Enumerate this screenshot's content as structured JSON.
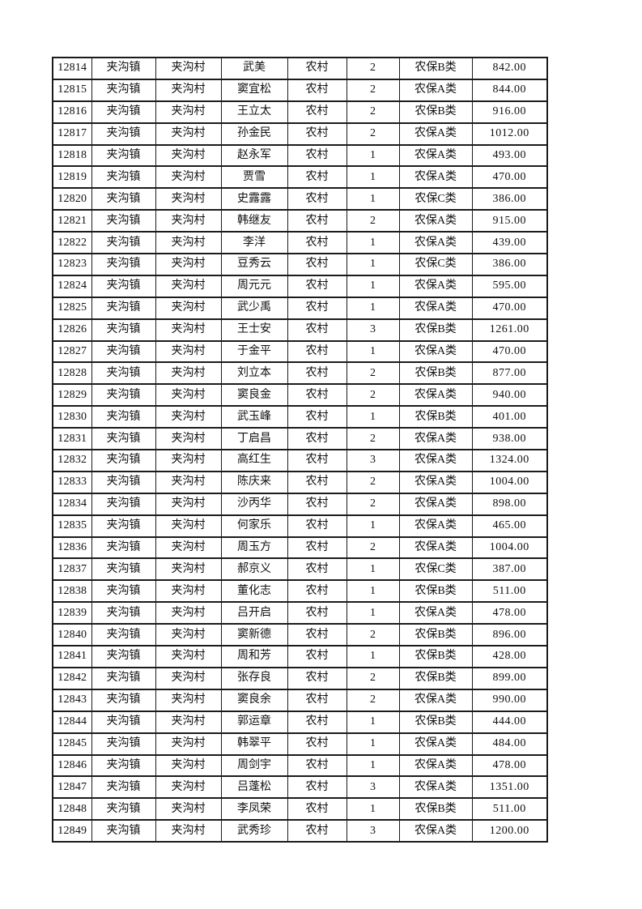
{
  "table": {
    "column_keys": [
      "id",
      "town",
      "village",
      "name",
      "residence",
      "count",
      "category",
      "amount"
    ],
    "rows": [
      {
        "id": "12814",
        "town": "夹沟镇",
        "village": "夹沟村",
        "name": "武美",
        "residence": "农村",
        "count": "2",
        "category": "农保B类",
        "amount": "842.00"
      },
      {
        "id": "12815",
        "town": "夹沟镇",
        "village": "夹沟村",
        "name": "窦宜松",
        "residence": "农村",
        "count": "2",
        "category": "农保A类",
        "amount": "844.00"
      },
      {
        "id": "12816",
        "town": "夹沟镇",
        "village": "夹沟村",
        "name": "王立太",
        "residence": "农村",
        "count": "2",
        "category": "农保B类",
        "amount": "916.00"
      },
      {
        "id": "12817",
        "town": "夹沟镇",
        "village": "夹沟村",
        "name": "孙金民",
        "residence": "农村",
        "count": "2",
        "category": "农保A类",
        "amount": "1012.00"
      },
      {
        "id": "12818",
        "town": "夹沟镇",
        "village": "夹沟村",
        "name": "赵永军",
        "residence": "农村",
        "count": "1",
        "category": "农保A类",
        "amount": "493.00"
      },
      {
        "id": "12819",
        "town": "夹沟镇",
        "village": "夹沟村",
        "name": "贾雪",
        "residence": "农村",
        "count": "1",
        "category": "农保A类",
        "amount": "470.00"
      },
      {
        "id": "12820",
        "town": "夹沟镇",
        "village": "夹沟村",
        "name": "史露露",
        "residence": "农村",
        "count": "1",
        "category": "农保C类",
        "amount": "386.00"
      },
      {
        "id": "12821",
        "town": "夹沟镇",
        "village": "夹沟村",
        "name": "韩继友",
        "residence": "农村",
        "count": "2",
        "category": "农保A类",
        "amount": "915.00"
      },
      {
        "id": "12822",
        "town": "夹沟镇",
        "village": "夹沟村",
        "name": "李洋",
        "residence": "农村",
        "count": "1",
        "category": "农保A类",
        "amount": "439.00"
      },
      {
        "id": "12823",
        "town": "夹沟镇",
        "village": "夹沟村",
        "name": "豆秀云",
        "residence": "农村",
        "count": "1",
        "category": "农保C类",
        "amount": "386.00"
      },
      {
        "id": "12824",
        "town": "夹沟镇",
        "village": "夹沟村",
        "name": "周元元",
        "residence": "农村",
        "count": "1",
        "category": "农保A类",
        "amount": "595.00"
      },
      {
        "id": "12825",
        "town": "夹沟镇",
        "village": "夹沟村",
        "name": "武少禹",
        "residence": "农村",
        "count": "1",
        "category": "农保A类",
        "amount": "470.00"
      },
      {
        "id": "12826",
        "town": "夹沟镇",
        "village": "夹沟村",
        "name": "王士安",
        "residence": "农村",
        "count": "3",
        "category": "农保B类",
        "amount": "1261.00"
      },
      {
        "id": "12827",
        "town": "夹沟镇",
        "village": "夹沟村",
        "name": "于金平",
        "residence": "农村",
        "count": "1",
        "category": "农保A类",
        "amount": "470.00"
      },
      {
        "id": "12828",
        "town": "夹沟镇",
        "village": "夹沟村",
        "name": "刘立本",
        "residence": "农村",
        "count": "2",
        "category": "农保B类",
        "amount": "877.00"
      },
      {
        "id": "12829",
        "town": "夹沟镇",
        "village": "夹沟村",
        "name": "窦良金",
        "residence": "农村",
        "count": "2",
        "category": "农保A类",
        "amount": "940.00"
      },
      {
        "id": "12830",
        "town": "夹沟镇",
        "village": "夹沟村",
        "name": "武玉峰",
        "residence": "农村",
        "count": "1",
        "category": "农保B类",
        "amount": "401.00"
      },
      {
        "id": "12831",
        "town": "夹沟镇",
        "village": "夹沟村",
        "name": "丁启昌",
        "residence": "农村",
        "count": "2",
        "category": "农保A类",
        "amount": "938.00"
      },
      {
        "id": "12832",
        "town": "夹沟镇",
        "village": "夹沟村",
        "name": "高红生",
        "residence": "农村",
        "count": "3",
        "category": "农保A类",
        "amount": "1324.00"
      },
      {
        "id": "12833",
        "town": "夹沟镇",
        "village": "夹沟村",
        "name": "陈庆来",
        "residence": "农村",
        "count": "2",
        "category": "农保A类",
        "amount": "1004.00"
      },
      {
        "id": "12834",
        "town": "夹沟镇",
        "village": "夹沟村",
        "name": "沙丙华",
        "residence": "农村",
        "count": "2",
        "category": "农保A类",
        "amount": "898.00"
      },
      {
        "id": "12835",
        "town": "夹沟镇",
        "village": "夹沟村",
        "name": "何家乐",
        "residence": "农村",
        "count": "1",
        "category": "农保A类",
        "amount": "465.00"
      },
      {
        "id": "12836",
        "town": "夹沟镇",
        "village": "夹沟村",
        "name": "周玉方",
        "residence": "农村",
        "count": "2",
        "category": "农保A类",
        "amount": "1004.00"
      },
      {
        "id": "12837",
        "town": "夹沟镇",
        "village": "夹沟村",
        "name": "郝京义",
        "residence": "农村",
        "count": "1",
        "category": "农保C类",
        "amount": "387.00"
      },
      {
        "id": "12838",
        "town": "夹沟镇",
        "village": "夹沟村",
        "name": "董化志",
        "residence": "农村",
        "count": "1",
        "category": "农保B类",
        "amount": "511.00"
      },
      {
        "id": "12839",
        "town": "夹沟镇",
        "village": "夹沟村",
        "name": "吕开启",
        "residence": "农村",
        "count": "1",
        "category": "农保A类",
        "amount": "478.00"
      },
      {
        "id": "12840",
        "town": "夹沟镇",
        "village": "夹沟村",
        "name": "窦新德",
        "residence": "农村",
        "count": "2",
        "category": "农保B类",
        "amount": "896.00"
      },
      {
        "id": "12841",
        "town": "夹沟镇",
        "village": "夹沟村",
        "name": "周和芳",
        "residence": "农村",
        "count": "1",
        "category": "农保B类",
        "amount": "428.00"
      },
      {
        "id": "12842",
        "town": "夹沟镇",
        "village": "夹沟村",
        "name": "张存良",
        "residence": "农村",
        "count": "2",
        "category": "农保B类",
        "amount": "899.00"
      },
      {
        "id": "12843",
        "town": "夹沟镇",
        "village": "夹沟村",
        "name": "窦良余",
        "residence": "农村",
        "count": "2",
        "category": "农保A类",
        "amount": "990.00"
      },
      {
        "id": "12844",
        "town": "夹沟镇",
        "village": "夹沟村",
        "name": "郭运章",
        "residence": "农村",
        "count": "1",
        "category": "农保B类",
        "amount": "444.00"
      },
      {
        "id": "12845",
        "town": "夹沟镇",
        "village": "夹沟村",
        "name": "韩翠平",
        "residence": "农村",
        "count": "1",
        "category": "农保A类",
        "amount": "484.00"
      },
      {
        "id": "12846",
        "town": "夹沟镇",
        "village": "夹沟村",
        "name": "周剑宇",
        "residence": "农村",
        "count": "1",
        "category": "农保A类",
        "amount": "478.00"
      },
      {
        "id": "12847",
        "town": "夹沟镇",
        "village": "夹沟村",
        "name": "吕蓬松",
        "residence": "农村",
        "count": "3",
        "category": "农保A类",
        "amount": "1351.00"
      },
      {
        "id": "12848",
        "town": "夹沟镇",
        "village": "夹沟村",
        "name": "李凤荣",
        "residence": "农村",
        "count": "1",
        "category": "农保B类",
        "amount": "511.00"
      },
      {
        "id": "12849",
        "town": "夹沟镇",
        "village": "夹沟村",
        "name": "武秀珍",
        "residence": "农村",
        "count": "3",
        "category": "农保A类",
        "amount": "1200.00"
      }
    ]
  },
  "colors": {
    "background": "#ffffff",
    "border": "#1b1b1b",
    "text": "#111111"
  }
}
